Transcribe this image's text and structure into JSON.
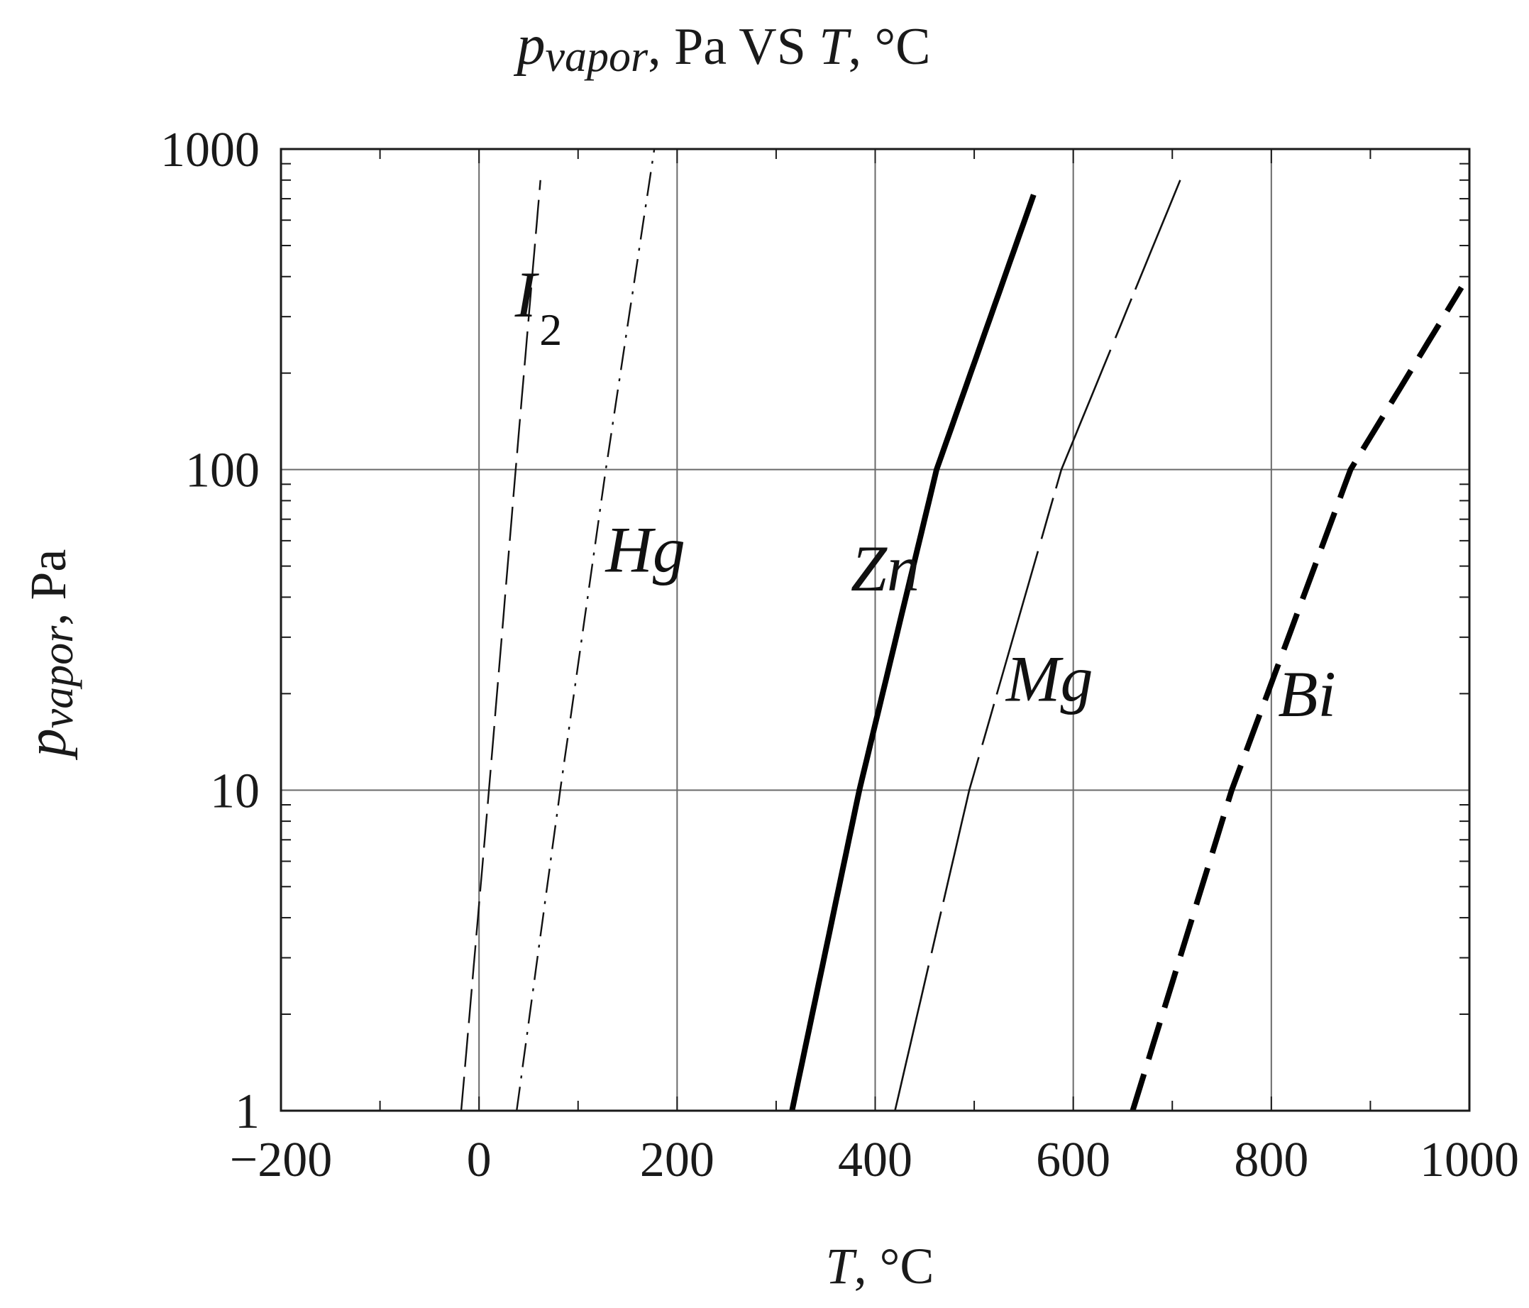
{
  "chart_data": {
    "type": "line",
    "title": {
      "italic_part": "p",
      "italic_sub": "vapor",
      "rest": ", Pa VS ",
      "t_symbol": "T",
      "unit": ", °C"
    },
    "xlabel": {
      "symbol": "T",
      "unit": ", °C"
    },
    "ylabel": {
      "symbol": "p",
      "sub": "vapor",
      "unit": ", Pa"
    },
    "xlim": [
      -200,
      1000
    ],
    "ylim": [
      1,
      1000
    ],
    "yscale": "log",
    "x_ticks": [
      -200,
      0,
      200,
      400,
      600,
      800,
      1000
    ],
    "x_tick_labels": [
      "−200",
      "0",
      "200",
      "400",
      "600",
      "800",
      "1000"
    ],
    "y_ticks": [
      1,
      10,
      100,
      1000
    ],
    "y_tick_labels": [
      "1",
      "10",
      "100",
      "1000"
    ],
    "grid": true,
    "series": [
      {
        "name": "I",
        "name_sub": "2",
        "style": "long-dash thin",
        "color": "#111111",
        "points": [
          [
            -18,
            1
          ],
          [
            10,
            10
          ],
          [
            37,
            100
          ],
          [
            62,
            800
          ]
        ]
      },
      {
        "name": "Hg",
        "style": "dash-dot thin",
        "color": "#111111",
        "points": [
          [
            38,
            1
          ],
          [
            82,
            10
          ],
          [
            128,
            100
          ],
          [
            177,
            1000
          ]
        ]
      },
      {
        "name": "Zn",
        "style": "solid thick",
        "color": "#000000",
        "points": [
          [
            316,
            1
          ],
          [
            384,
            10
          ],
          [
            462,
            100
          ],
          [
            560,
            720
          ]
        ]
      },
      {
        "name": "Mg",
        "style": "solid thin with gaps",
        "color": "#111111",
        "points": [
          [
            420,
            1
          ],
          [
            495,
            10
          ],
          [
            588,
            100
          ],
          [
            708,
            800
          ]
        ]
      },
      {
        "name": "Bi",
        "style": "heavy dashed",
        "color": "#000000",
        "points": [
          [
            660,
            1
          ],
          [
            760,
            10
          ],
          [
            880,
            100
          ],
          [
            992,
            370
          ]
        ]
      }
    ]
  }
}
